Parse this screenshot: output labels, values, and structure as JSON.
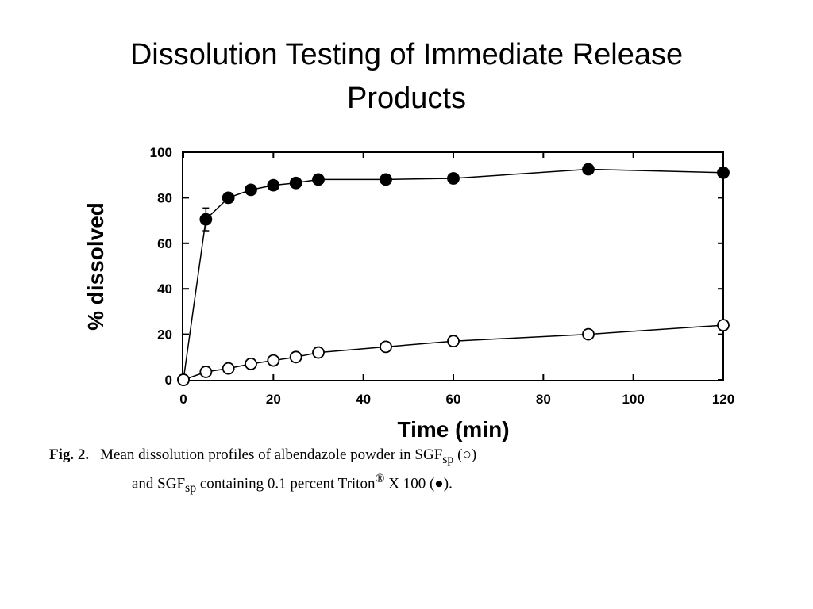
{
  "slide": {
    "title_line1": "Dissolution Testing of Immediate Release",
    "title_line2": "Products"
  },
  "caption": {
    "fig_number": "Fig. 2.",
    "line1_a": "Mean dissolution profiles of albendazole powder in SGF",
    "line1_sub": "sp",
    "line1_b": " (○)",
    "line2_a": "and SGF",
    "line2_sub": "sp",
    "line2_b": " containing 0.1 percent Triton",
    "line2_sup": "®",
    "line2_c": " X 100 (●)."
  },
  "chart_data": {
    "type": "line",
    "xlabel": "Time (min)",
    "ylabel": "% dissolved",
    "xlim": [
      0,
      120
    ],
    "ylim": [
      0,
      100
    ],
    "xticks": [
      0,
      20,
      40,
      60,
      80,
      100,
      120
    ],
    "yticks": [
      0,
      20,
      40,
      60,
      80,
      100
    ],
    "grid": false,
    "series": [
      {
        "marker": "filled-circle",
        "x": [
          0,
          5,
          10,
          15,
          20,
          25,
          30,
          45,
          60,
          90,
          120
        ],
        "y": [
          0,
          70.5,
          80,
          83.5,
          85.5,
          86.5,
          88,
          88,
          88.5,
          92.5,
          91
        ],
        "error": [
          0,
          5,
          0,
          0,
          0,
          0,
          0,
          0,
          0,
          0,
          0
        ]
      },
      {
        "marker": "open-circle",
        "x": [
          0,
          5,
          10,
          15,
          20,
          25,
          30,
          45,
          60,
          90,
          120
        ],
        "y": [
          0,
          3.5,
          5,
          7,
          8.5,
          10,
          12,
          14.5,
          17,
          20,
          24
        ]
      }
    ]
  }
}
